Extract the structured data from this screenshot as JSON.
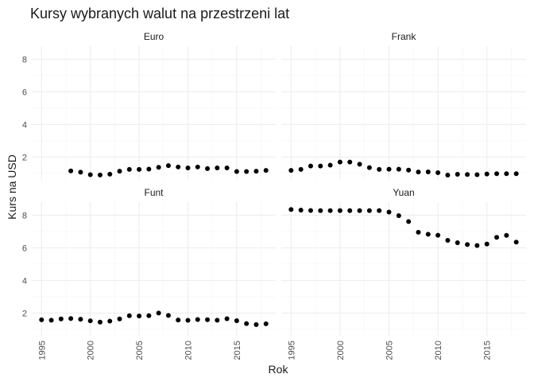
{
  "chart_data": {
    "type": "scatter",
    "title": "Kursy wybranych walut na przestrzeni lat",
    "xlabel": "Rok",
    "ylabel": "Kurs na USD",
    "xlim": [
      1994,
      2019
    ],
    "ylim": [
      0.6,
      8.8
    ],
    "x_ticks": [
      1995,
      2000,
      2005,
      2010,
      2015
    ],
    "y_ticks": [
      2,
      4,
      6,
      8
    ],
    "grid": true,
    "point_color": "#000000",
    "panels": [
      {
        "name": "Euro",
        "x": [
          1998,
          1999,
          2000,
          2001,
          2002,
          2003,
          2004,
          2005,
          2006,
          2007,
          2008,
          2009,
          2010,
          2011,
          2012,
          2013,
          2014,
          2015,
          2016,
          2017,
          2018
        ],
        "y": [
          1.15,
          1.07,
          0.92,
          0.9,
          0.95,
          1.13,
          1.24,
          1.24,
          1.26,
          1.37,
          1.47,
          1.39,
          1.33,
          1.39,
          1.29,
          1.33,
          1.33,
          1.11,
          1.11,
          1.13,
          1.18
        ]
      },
      {
        "name": "Frank",
        "x": [
          1995,
          1996,
          1997,
          1998,
          1999,
          2000,
          2001,
          2002,
          2003,
          2004,
          2005,
          2006,
          2007,
          2008,
          2009,
          2010,
          2011,
          2012,
          2013,
          2014,
          2015,
          2016,
          2017,
          2018
        ],
        "y": [
          1.18,
          1.24,
          1.45,
          1.45,
          1.5,
          1.69,
          1.69,
          1.56,
          1.35,
          1.24,
          1.25,
          1.25,
          1.2,
          1.08,
          1.09,
          1.04,
          0.89,
          0.94,
          0.93,
          0.92,
          0.96,
          0.98,
          0.98,
          0.98
        ]
      },
      {
        "name": "Funt",
        "x": [
          1995,
          1996,
          1997,
          1998,
          1999,
          2000,
          2001,
          2002,
          2003,
          2004,
          2005,
          2006,
          2007,
          2008,
          2009,
          2010,
          2011,
          2012,
          2013,
          2014,
          2015,
          2016,
          2017,
          2018
        ],
        "y": [
          1.58,
          1.56,
          1.64,
          1.66,
          1.62,
          1.52,
          1.44,
          1.5,
          1.64,
          1.83,
          1.82,
          1.84,
          2.0,
          1.85,
          1.57,
          1.55,
          1.6,
          1.59,
          1.56,
          1.65,
          1.53,
          1.35,
          1.29,
          1.34
        ]
      },
      {
        "name": "Yuan",
        "x": [
          1995,
          1996,
          1997,
          1998,
          1999,
          2000,
          2001,
          2002,
          2003,
          2004,
          2005,
          2006,
          2007,
          2008,
          2009,
          2010,
          2011,
          2012,
          2013,
          2014,
          2015,
          2016,
          2017,
          2018
        ],
        "y": [
          8.35,
          8.31,
          8.29,
          8.28,
          8.28,
          8.28,
          8.28,
          8.28,
          8.28,
          8.28,
          8.19,
          7.97,
          7.61,
          6.95,
          6.83,
          6.77,
          6.46,
          6.31,
          6.2,
          6.14,
          6.23,
          6.64,
          6.76,
          6.35
        ]
      }
    ]
  }
}
